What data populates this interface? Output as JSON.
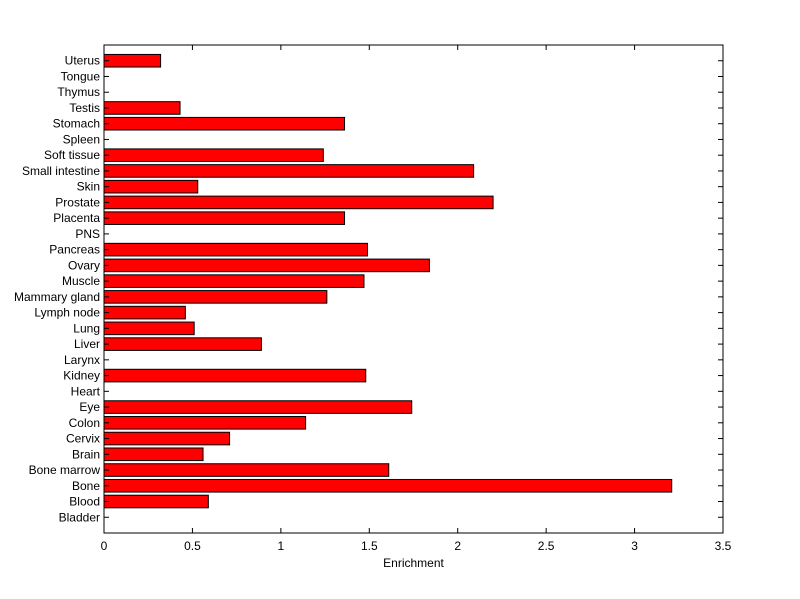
{
  "chart_data": {
    "type": "bar",
    "orientation": "horizontal",
    "categories": [
      "Bladder",
      "Blood",
      "Bone",
      "Bone marrow",
      "Brain",
      "Cervix",
      "Colon",
      "Eye",
      "Heart",
      "Kidney",
      "Larynx",
      "Liver",
      "Lung",
      "Lymph node",
      "Mammary gland",
      "Muscle",
      "Ovary",
      "Pancreas",
      "PNS",
      "Placenta",
      "Prostate",
      "Skin",
      "Small intestine",
      "Soft tissue",
      "Spleen",
      "Stomach",
      "Testis",
      "Thymus",
      "Tongue",
      "Uterus"
    ],
    "values": [
      0,
      0.59,
      3.21,
      1.61,
      0.56,
      0.71,
      1.14,
      1.74,
      0,
      1.48,
      0,
      0.89,
      0.51,
      0.46,
      1.26,
      1.47,
      1.84,
      1.49,
      0,
      1.36,
      2.2,
      0.53,
      2.09,
      1.24,
      0,
      1.36,
      0.43,
      0,
      0,
      0.32
    ],
    "title": "",
    "xlabel": "Enrichment",
    "ylabel": "",
    "xlim": [
      0,
      3.5
    ],
    "xticks": [
      0,
      0.5,
      1,
      1.5,
      2,
      2.5,
      3,
      3.5
    ],
    "xtick_labels": [
      "0",
      "0.5",
      "1",
      "1.5",
      "2",
      "2.5",
      "3",
      "3.5"
    ],
    "grid": false,
    "bar_color": "#ff0000",
    "bar_edge_color": "#000000"
  }
}
